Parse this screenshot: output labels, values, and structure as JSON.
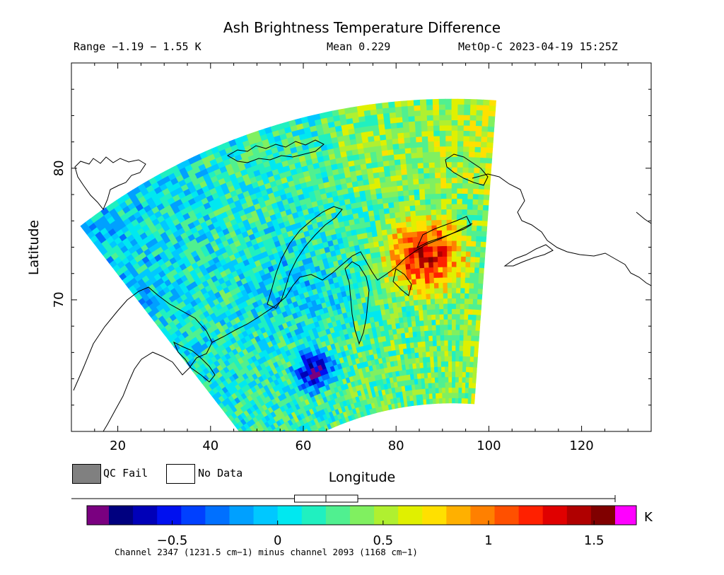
{
  "chart_data": {
    "type": "heatmap",
    "title": "Ash Brightness Temperature Difference",
    "range_text": "Range −1.19 − 1.55 K",
    "mean_text": "Mean 0.229",
    "satellite_text": "MetOp-C 2023-04-19 15:25Z",
    "xlabel": "Longitude",
    "ylabel": "Latitude",
    "xlim": [
      10,
      135
    ],
    "ylim": [
      60,
      88
    ],
    "x_ticks": [
      20,
      40,
      60,
      80,
      100,
      120
    ],
    "y_ticks": [
      70,
      80
    ],
    "colorbar": {
      "unit": "K",
      "range": [
        -0.8,
        1.6
      ],
      "ticks": [
        {
          "value": -0.5,
          "label": "−0.5"
        },
        {
          "value": 0,
          "label": "0"
        },
        {
          "value": 0.5,
          "label": "0.5"
        },
        {
          "value": 1,
          "label": "1"
        },
        {
          "value": 1.5,
          "label": "1.5"
        }
      ],
      "under_color": "#7a0080",
      "over_color": "#ff00ff",
      "colors": [
        "#00007f",
        "#0000b8",
        "#0010f0",
        "#0040ff",
        "#0070ff",
        "#00a0ff",
        "#00c8ff",
        "#00e8f0",
        "#20f0c0",
        "#50f090",
        "#80f060",
        "#b0f030",
        "#e0f000",
        "#ffe000",
        "#ffb000",
        "#ff8000",
        "#ff5000",
        "#ff2000",
        "#e00000",
        "#b00000",
        "#800000"
      ],
      "mean": 0.229,
      "box_q1": 0.08,
      "box_q3": 0.38
    },
    "legend": {
      "qc_fail": "QC Fail",
      "no_data": "No Data",
      "qc_color": "#808080"
    },
    "caption": "Channel 2347 (1231.5 cm−1) minus channel 2093 (1168 cm−1)",
    "notable_regions": [
      {
        "label": "elevated BTD",
        "lon": [
          82,
          97
        ],
        "lat": [
          70,
          75
        ],
        "approx_value": 1.3
      },
      {
        "label": "negative BTD",
        "lon": [
          60,
          67
        ],
        "lat": [
          62,
          65
        ],
        "approx_value": -0.7
      }
    ]
  }
}
